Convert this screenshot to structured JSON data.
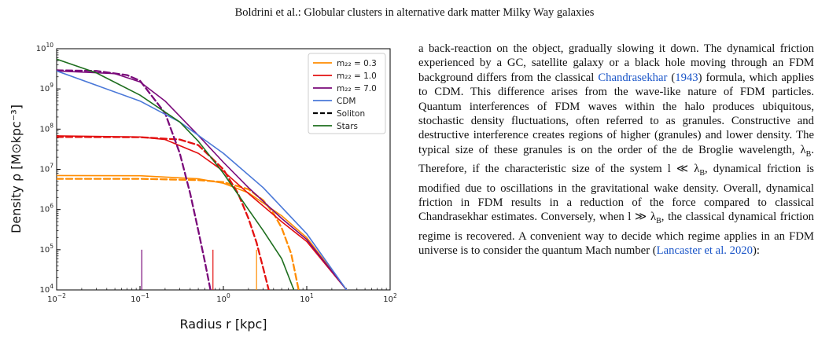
{
  "header": {
    "running_title": "Boldrini et al.: Globular clusters in alternative dark matter Milky Way galaxies"
  },
  "chart_data": {
    "type": "line",
    "xlabel": "Radius r [kpc]",
    "ylabel": "Density ρ [M⊙kpc⁻³]",
    "xscale": "log",
    "yscale": "log",
    "xlim": [
      0.01,
      100
    ],
    "ylim": [
      10000,
      10000000000
    ],
    "x_ticks": [
      {
        "value": 0.01,
        "base": "10",
        "exp": "−2"
      },
      {
        "value": 0.1,
        "base": "10",
        "exp": "−1"
      },
      {
        "value": 1,
        "base": "10",
        "exp": "0"
      },
      {
        "value": 10,
        "base": "10",
        "exp": "1"
      },
      {
        "value": 100,
        "base": "10",
        "exp": "2"
      }
    ],
    "y_ticks": [
      {
        "value": 10000,
        "base": "10",
        "exp": "4"
      },
      {
        "value": 100000,
        "base": "10",
        "exp": "5"
      },
      {
        "value": 1000000,
        "base": "10",
        "exp": "6"
      },
      {
        "value": 10000000,
        "base": "10",
        "exp": "7"
      },
      {
        "value": 100000000,
        "base": "10",
        "exp": "8"
      },
      {
        "value": 1000000000,
        "base": "10",
        "exp": "9"
      },
      {
        "value": 10000000000,
        "base": "10",
        "exp": "10"
      }
    ],
    "legend_position": "top-right",
    "legend": [
      {
        "label": "m₂₂ = 0.3",
        "color": "#ff8c00",
        "dash": "solid"
      },
      {
        "label": "m₂₂ = 1.0",
        "color": "#e31010",
        "dash": "solid"
      },
      {
        "label": "m₂₂ = 7.0",
        "color": "#7a0a7a",
        "dash": "solid"
      },
      {
        "label": "CDM",
        "color": "#4a78d8",
        "dash": "solid"
      },
      {
        "label": "Soliton",
        "color": "#000000",
        "dash": "dashed"
      },
      {
        "label": "Stars",
        "color": "#1e6e1e",
        "dash": "solid"
      }
    ],
    "series": [
      {
        "name": "m₂₂ = 0.3",
        "color": "#ff8c00",
        "dash": "solid",
        "x": [
          0.01,
          0.1,
          0.5,
          1,
          2,
          5,
          10,
          30
        ],
        "y": [
          7000000,
          6900000,
          5800000,
          4500000,
          2600000,
          700000,
          200000,
          10000
        ]
      },
      {
        "name": "m₂₂ = 0.3 soliton",
        "color": "#ff8c00",
        "dash": "dashed",
        "x": [
          0.01,
          0.1,
          0.5,
          1,
          2,
          3,
          4,
          5,
          6.5,
          8
        ],
        "y": [
          5800000,
          5800000,
          5400000,
          4800000,
          3200000,
          1700000,
          800000,
          350000,
          80000,
          10000
        ]
      },
      {
        "name": "m₂₂ = 1.0",
        "color": "#e31010",
        "dash": "solid",
        "x": [
          0.01,
          0.1,
          0.2,
          0.5,
          1,
          2,
          5,
          10,
          30
        ],
        "y": [
          68000000,
          64000000,
          55000000,
          25000000,
          9000000,
          2500000,
          500000,
          160000,
          10000
        ]
      },
      {
        "name": "m₂₂ = 1.0 soliton",
        "color": "#e31010",
        "dash": "dashed",
        "x": [
          0.01,
          0.1,
          0.3,
          0.5,
          1,
          1.5,
          2,
          2.5,
          3,
          3.5
        ],
        "y": [
          64000000,
          63000000,
          55000000,
          40000000,
          10000000,
          2500000,
          600000,
          150000,
          35000,
          10000
        ]
      },
      {
        "name": "m₂₂ = 7.0",
        "color": "#7a0a7a",
        "dash": "solid",
        "x": [
          0.01,
          0.05,
          0.1,
          0.2,
          0.5,
          1,
          2,
          5,
          10,
          30
        ],
        "y": [
          2800000000,
          2400000000,
          1500000000,
          500000000,
          70000000,
          15000000,
          3500000,
          600000,
          180000,
          10000
        ]
      },
      {
        "name": "m₂₂ = 7.0 soliton",
        "color": "#7a0a7a",
        "dash": "dashed",
        "x": [
          0.01,
          0.03,
          0.07,
          0.1,
          0.2,
          0.3,
          0.4,
          0.5,
          0.6,
          0.7
        ],
        "y": [
          2900000000,
          2800000000,
          2200000000,
          1600000000,
          250000000,
          25000000,
          2500000,
          300000,
          50000,
          10000
        ]
      },
      {
        "name": "CDM",
        "color": "#4a78d8",
        "dash": "solid",
        "x": [
          0.01,
          0.1,
          0.3,
          1,
          3,
          10,
          30
        ],
        "y": [
          2800000000,
          500000000,
          150000000,
          25000000,
          3500000,
          250000,
          10000
        ]
      },
      {
        "name": "Stars",
        "color": "#1e6e1e",
        "dash": "solid",
        "x": [
          0.01,
          0.03,
          0.1,
          0.3,
          0.5,
          1,
          2,
          3,
          5,
          7
        ],
        "y": [
          5500000000,
          2500000000,
          700000000,
          150000000,
          50000000,
          8000000,
          1000000,
          300000,
          60000,
          10000
        ]
      }
    ],
    "markers": [
      {
        "x": 0.105,
        "y_top": 100000,
        "color": "#7a0a7a"
      },
      {
        "x": 0.75,
        "y_top": 100000,
        "color": "#e31010"
      },
      {
        "x": 2.5,
        "y_top": 100000,
        "color": "#ff8c00"
      }
    ]
  },
  "body_text": [
    {
      "t": "a back-reaction on the object, gradually slowing it down. The dynamical friction experienced by a GC, satellite galaxy or a black hole moving through an FDM background differs from the classical "
    },
    {
      "t": "Chandrasekhar",
      "cite": true
    },
    {
      "t": " ("
    },
    {
      "t": "1943",
      "cite": true
    },
    {
      "t": ") formula, which applies to CDM. This difference arises from the wave-like nature of FDM particles. Quantum interferences of FDM waves within the halo produces ubiquitous, stochastic density fluctuations, often referred to as granules. Constructive and destructive interference creates regions of higher (granules) and lower density. The typical size of these granules is on the order of the de Broglie wavelength, λ"
    },
    {
      "t": "B",
      "sub": true
    },
    {
      "t": ". Therefore, if the characteristic size of the system l ≪ λ"
    },
    {
      "t": "B",
      "sub": true
    },
    {
      "t": ", dynamical friction is modified due to oscillations in the gravitational wake density. Overall, dynamical friction in FDM results in a reduction of the force compared to classical Chandrasekhar estimates. Conversely, when l ≫ λ"
    },
    {
      "t": "B",
      "sub": true
    },
    {
      "t": ", the classical dynamical friction regime is recovered. A convenient way to decide which regime applies in an FDM universe is to consider the quantum Mach number ("
    },
    {
      "t": "Lancaster et al. 2020",
      "cite": true
    },
    {
      "t": "):"
    }
  ]
}
